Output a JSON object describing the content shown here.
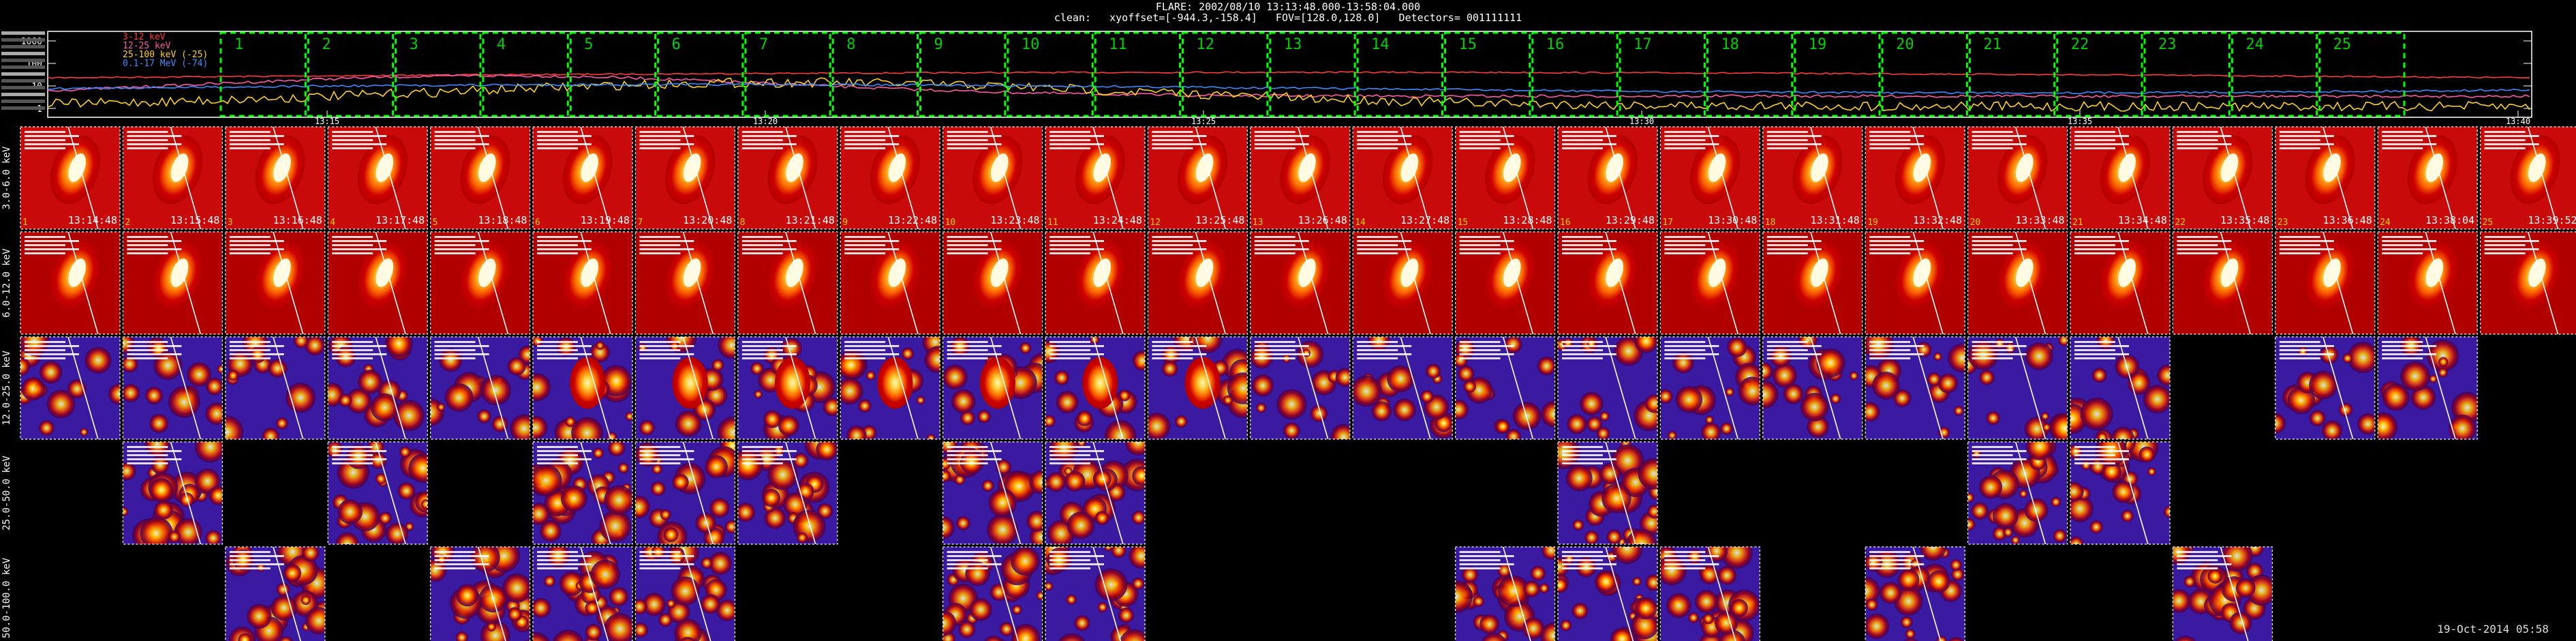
{
  "header": {
    "line1": "FLARE: 2002/08/10 13:13:48.000-13:58:04.000",
    "line2": "clean:   xyoffset=[-944.3,-158.4]   FOV=[128.0,128.0]   Detectors= 001111111"
  },
  "footer": {
    "timestamp": "19-Oct-2014 05:58"
  },
  "colors": {
    "band1": "#ff3b3b",
    "band2": "#ff5aa6",
    "band3": "#ffd21a",
    "band4": "#3a8cff",
    "windows": "#00ff00",
    "window_numbers": "#00d000"
  },
  "chart_data": {
    "type": "line",
    "title": "FLARE: 2002/08/10 13:13:48.000-13:58:04.000",
    "yscale": "log",
    "ytick_labels": [
      "1000",
      "100",
      "10",
      "1"
    ],
    "xtick_labels": [
      "13:15",
      "13:20",
      "13:25",
      "13:30",
      "13:35",
      "13:40"
    ],
    "legend": [
      "3-12 keV",
      "12-25 keV",
      "25-100 keV (-25)",
      "0.1-17 MeV (-74)"
    ],
    "legend_placement": "top-left",
    "time_windows": [
      "1",
      "2",
      "3",
      "4",
      "5",
      "6",
      "7",
      "8",
      "9",
      "10",
      "11",
      "12",
      "13",
      "14",
      "15",
      "16",
      "17",
      "18",
      "19",
      "20",
      "21",
      "22",
      "23",
      "24",
      "25"
    ],
    "image_grid": {
      "rows": [
        "3.0-6.0 keV",
        "6.0-12.0 keV",
        "12.0-25.0 keV",
        "25.0-50.0 keV",
        "50.0-100.0 keV"
      ],
      "columns": [
        "13:14:48",
        "13:15:48",
        "13:16:48",
        "13:17:48",
        "13:18:48",
        "13:19:48",
        "13:20:48",
        "13:21:48",
        "13:22:48",
        "13:23:48",
        "13:24:48",
        "13:25:48",
        "13:26:48",
        "13:27:48",
        "13:28:48",
        "13:29:48",
        "13:30:48",
        "13:31:48",
        "13:32:48",
        "13:33:48",
        "13:34:48",
        "13:35:48",
        "13:36:48",
        "13:38:04",
        "13:39:52"
      ],
      "present": [
        [
          1,
          1,
          1,
          1,
          1,
          1,
          1,
          1,
          1,
          1,
          1,
          1,
          1,
          1,
          1,
          1,
          1,
          1,
          1,
          1,
          1,
          1,
          1,
          1,
          1
        ],
        [
          1,
          1,
          1,
          1,
          1,
          1,
          1,
          1,
          1,
          1,
          1,
          1,
          1,
          1,
          1,
          1,
          1,
          1,
          1,
          1,
          1,
          1,
          1,
          1,
          1
        ],
        [
          1,
          1,
          1,
          1,
          1,
          1,
          1,
          1,
          1,
          1,
          1,
          1,
          1,
          1,
          1,
          1,
          1,
          1,
          1,
          1,
          1,
          0,
          1,
          1,
          0
        ],
        [
          0,
          1,
          0,
          1,
          0,
          1,
          1,
          1,
          0,
          1,
          1,
          0,
          0,
          0,
          0,
          1,
          0,
          0,
          0,
          1,
          1,
          0,
          0,
          0,
          0
        ],
        [
          0,
          0,
          1,
          0,
          1,
          1,
          1,
          0,
          0,
          1,
          1,
          0,
          0,
          0,
          1,
          1,
          1,
          0,
          1,
          0,
          0,
          1,
          0,
          0,
          0
        ]
      ]
    }
  }
}
